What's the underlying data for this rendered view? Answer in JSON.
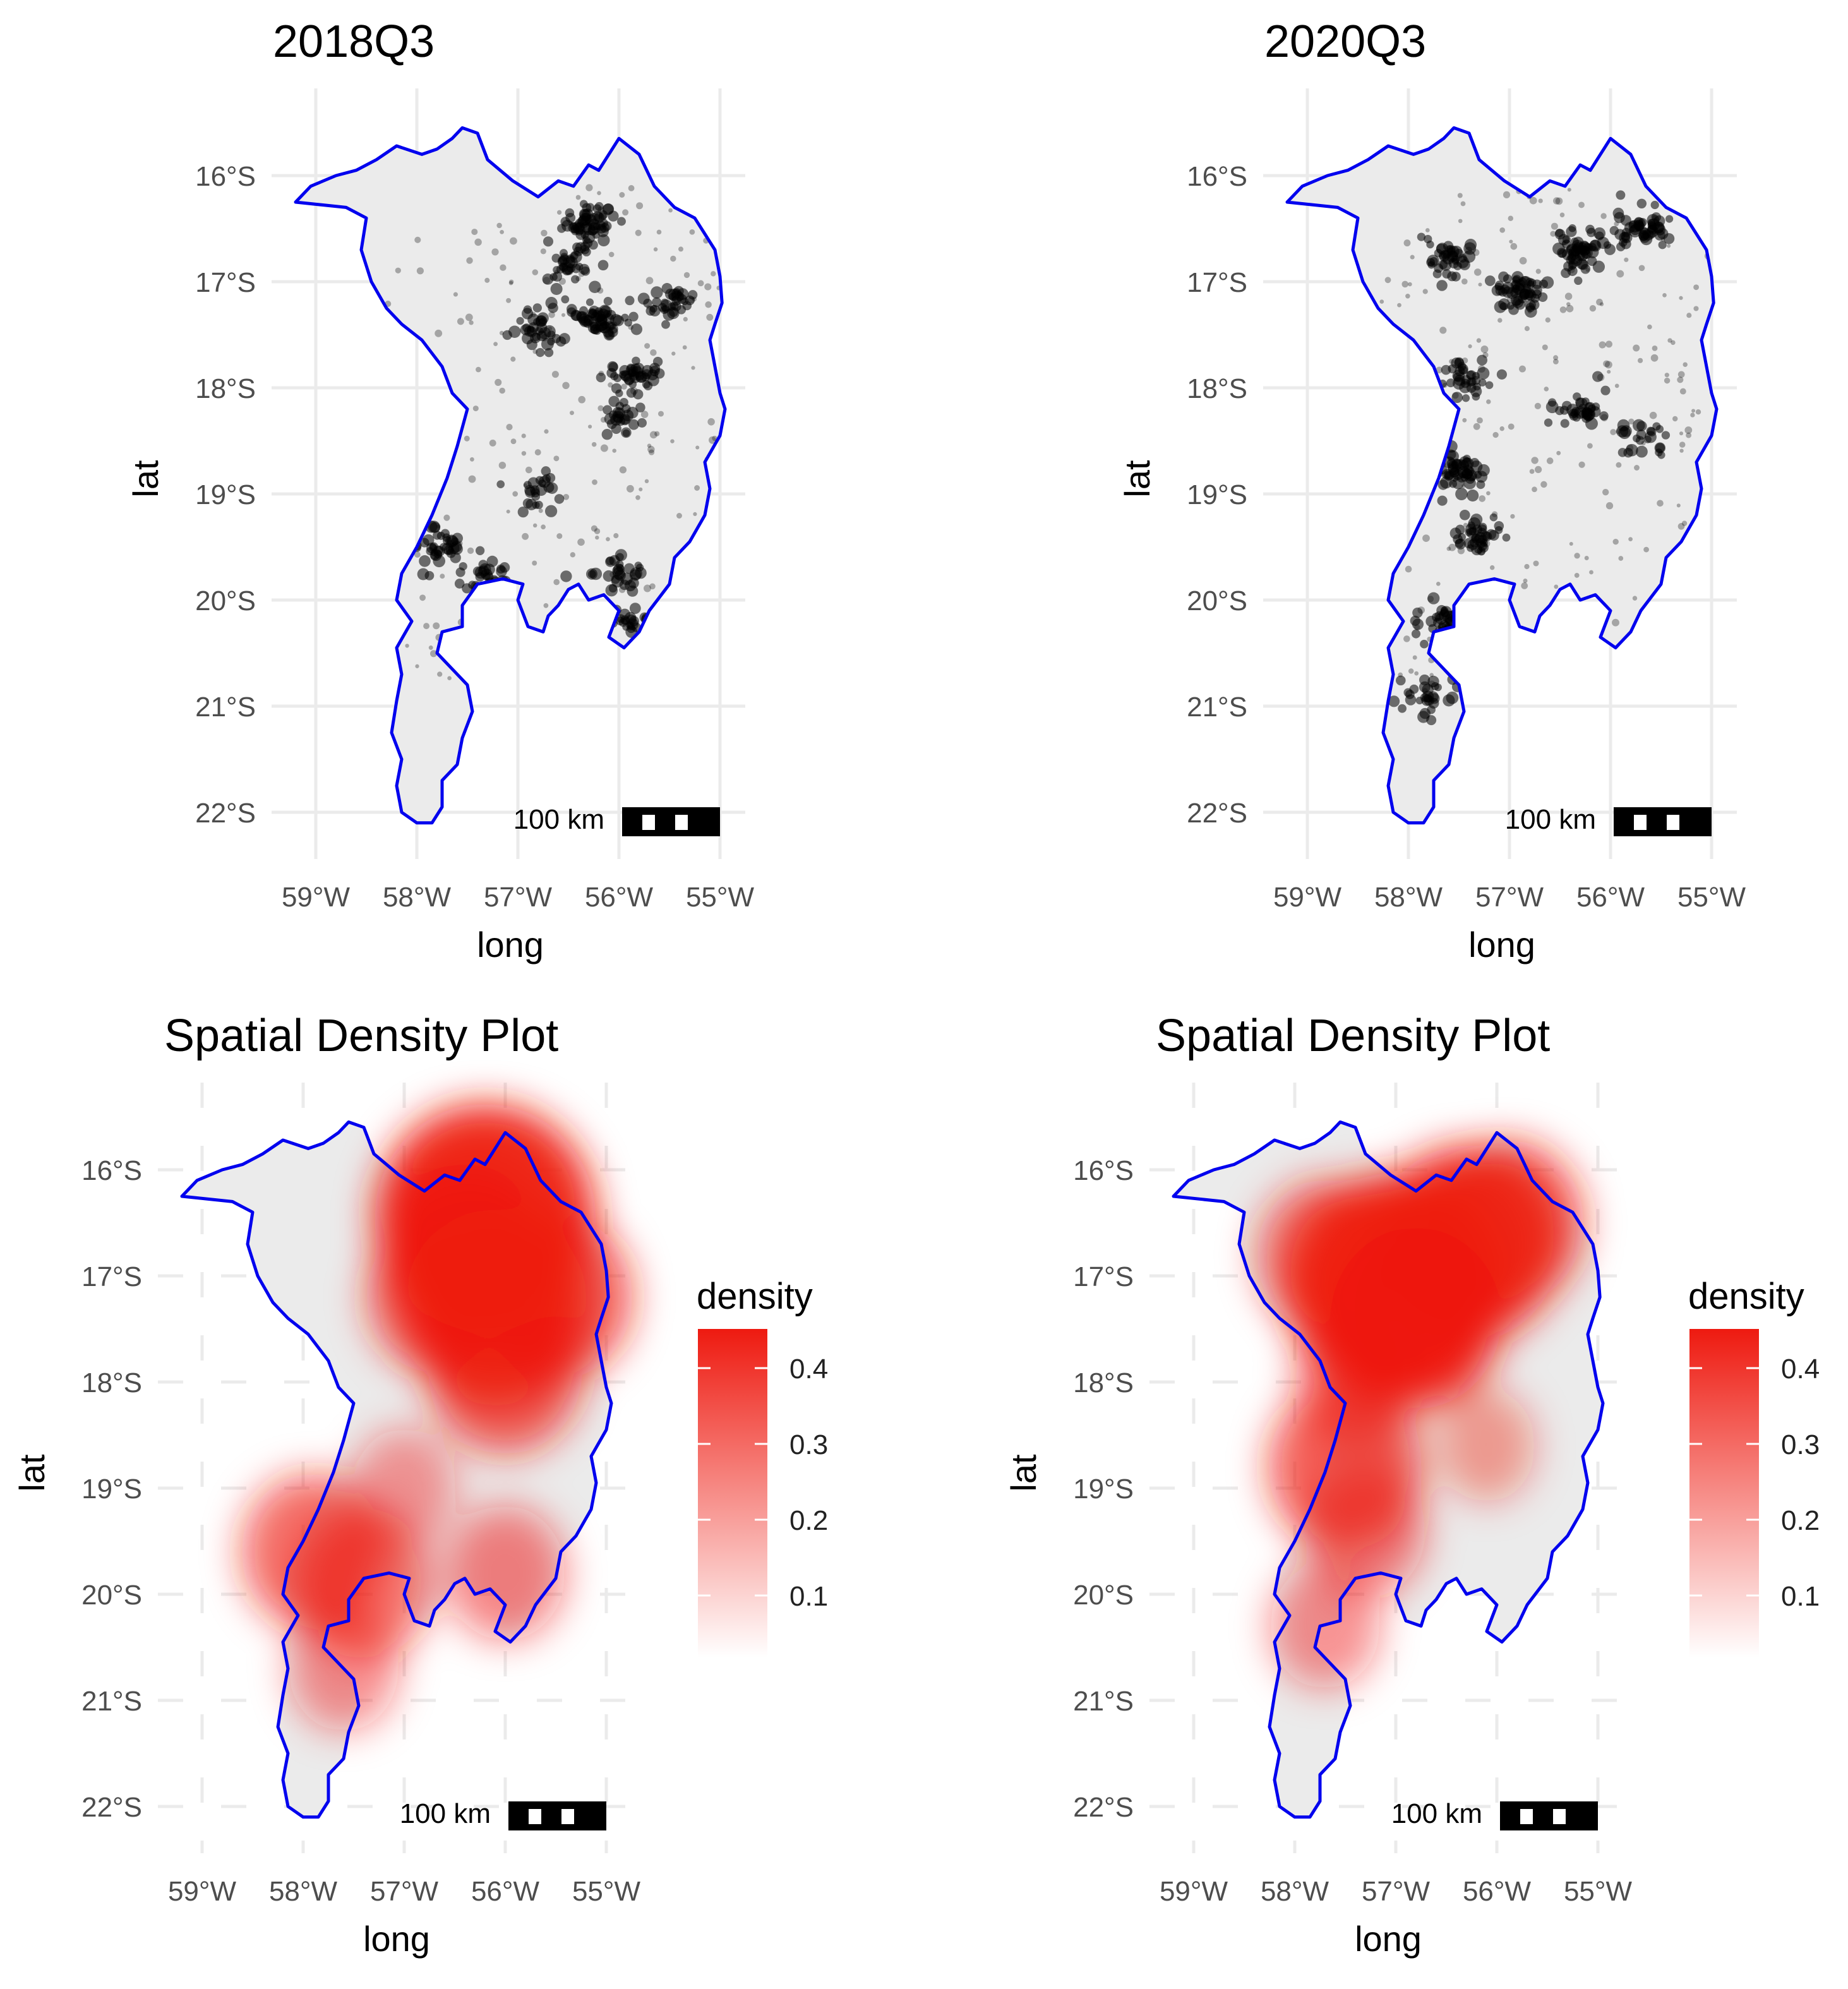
{
  "figure": {
    "panels": [
      {
        "id": "2018-points",
        "kind": "points",
        "title": "2018Q3",
        "xlabel": "long",
        "ylabel": "lat",
        "scalebar_label": "100 km"
      },
      {
        "id": "2020-points",
        "kind": "points",
        "title": "2020Q3",
        "xlabel": "long",
        "ylabel": "lat",
        "scalebar_label": "100 km"
      },
      {
        "id": "2018-density",
        "kind": "density",
        "title": "Spatial Density Plot",
        "xlabel": "long",
        "ylabel": "lat",
        "scalebar_label": "100 km",
        "legend_title": "density",
        "legend_ticks": [
          "0.4",
          "0.3",
          "0.2",
          "0.1"
        ]
      },
      {
        "id": "2020-density",
        "kind": "density",
        "title": "Spatial Density Plot",
        "xlabel": "long",
        "ylabel": "lat",
        "scalebar_label": "100 km",
        "legend_title": "density",
        "legend_ticks": [
          "0.4",
          "0.3",
          "0.2",
          "0.1"
        ]
      }
    ],
    "x_ticks": [
      "59°W",
      "58°W",
      "57°W",
      "56°W",
      "55°W"
    ],
    "y_ticks": [
      "16°S",
      "17°S",
      "18°S",
      "19°S",
      "20°S",
      "21°S",
      "22°S"
    ],
    "colors": {
      "boundary": "#0000ee",
      "fill": "#ebebeb",
      "grid": "#ebebeb",
      "points": "#000000",
      "density_high": "#ee1a10",
      "density_low": "#ffffff"
    }
  },
  "chart_data": [
    {
      "type": "scatter",
      "title": "2018Q3",
      "xlabel": "long",
      "ylabel": "lat",
      "xlim": [
        -59.2,
        -54.7
      ],
      "ylim": [
        -22.4,
        -15.5
      ],
      "clusters": [
        {
          "lon": -56.3,
          "lat": -16.45,
          "weight": 1.0
        },
        {
          "lon": -56.5,
          "lat": -16.85,
          "weight": 0.6
        },
        {
          "lon": -56.2,
          "lat": -17.35,
          "weight": 1.0
        },
        {
          "lon": -56.8,
          "lat": -17.45,
          "weight": 0.6
        },
        {
          "lon": -55.5,
          "lat": -17.2,
          "weight": 0.6
        },
        {
          "lon": -55.9,
          "lat": -17.9,
          "weight": 0.7
        },
        {
          "lon": -56.0,
          "lat": -18.3,
          "weight": 0.4
        },
        {
          "lon": -57.8,
          "lat": -19.5,
          "weight": 0.7
        },
        {
          "lon": -57.3,
          "lat": -19.8,
          "weight": 0.6
        },
        {
          "lon": -56.8,
          "lat": -19.0,
          "weight": 0.4
        },
        {
          "lon": -56.0,
          "lat": -19.7,
          "weight": 0.5
        },
        {
          "lon": -55.9,
          "lat": -20.2,
          "weight": 0.4
        },
        {
          "lon": -57.5,
          "lat": -20.5,
          "weight": 0.4
        }
      ]
    },
    {
      "type": "scatter",
      "title": "2020Q3",
      "xlabel": "long",
      "ylabel": "lat",
      "xlim": [
        -59.2,
        -54.7
      ],
      "ylim": [
        -22.4,
        -15.5
      ],
      "clusters": [
        {
          "lon": -56.9,
          "lat": -17.1,
          "weight": 1.0
        },
        {
          "lon": -56.3,
          "lat": -16.7,
          "weight": 1.0
        },
        {
          "lon": -55.7,
          "lat": -16.5,
          "weight": 0.9
        },
        {
          "lon": -57.6,
          "lat": -16.8,
          "weight": 0.7
        },
        {
          "lon": -57.4,
          "lat": -17.9,
          "weight": 0.6
        },
        {
          "lon": -57.5,
          "lat": -18.8,
          "weight": 0.9
        },
        {
          "lon": -57.3,
          "lat": -19.4,
          "weight": 0.7
        },
        {
          "lon": -57.6,
          "lat": -20.2,
          "weight": 0.7
        },
        {
          "lon": -57.8,
          "lat": -20.9,
          "weight": 0.5
        },
        {
          "lon": -56.3,
          "lat": -18.2,
          "weight": 0.6
        },
        {
          "lon": -55.7,
          "lat": -18.5,
          "weight": 0.4
        }
      ]
    },
    {
      "type": "heatmap",
      "title": "Spatial Density Plot",
      "xlabel": "long",
      "ylabel": "lat",
      "legend_title": "density",
      "colorbar_range": [
        0,
        0.45
      ],
      "xlim": [
        -59.2,
        -54.7
      ],
      "ylim": [
        -22.4,
        -15.5
      ],
      "hotspots": [
        {
          "lon": -56.2,
          "lat": -16.45,
          "density": 0.45
        },
        {
          "lon": -56.4,
          "lat": -16.8,
          "density": 0.3
        },
        {
          "lon": -56.1,
          "lat": -17.3,
          "density": 0.35
        },
        {
          "lon": -55.5,
          "lat": -17.2,
          "density": 0.25
        },
        {
          "lon": -56.7,
          "lat": -17.2,
          "density": 0.2
        },
        {
          "lon": -56.0,
          "lat": -17.9,
          "density": 0.25
        },
        {
          "lon": -57.9,
          "lat": -19.6,
          "density": 0.22
        },
        {
          "lon": -57.4,
          "lat": -19.9,
          "density": 0.2
        },
        {
          "lon": -57.0,
          "lat": -19.0,
          "density": 0.1
        },
        {
          "lon": -56.0,
          "lat": -19.8,
          "density": 0.15
        },
        {
          "lon": -57.6,
          "lat": -20.7,
          "density": 0.12
        }
      ]
    },
    {
      "type": "heatmap",
      "title": "Spatial Density Plot",
      "xlabel": "long",
      "ylabel": "lat",
      "legend_title": "density",
      "colorbar_range": [
        0,
        0.45
      ],
      "xlim": [
        -59.2,
        -54.7
      ],
      "ylim": [
        -22.4,
        -15.5
      ],
      "hotspots": [
        {
          "lon": -57.0,
          "lat": -17.1,
          "density": 0.45
        },
        {
          "lon": -56.3,
          "lat": -16.7,
          "density": 0.35
        },
        {
          "lon": -56.8,
          "lat": -17.4,
          "density": 0.3
        },
        {
          "lon": -55.9,
          "lat": -16.5,
          "density": 0.25
        },
        {
          "lon": -57.7,
          "lat": -16.8,
          "density": 0.2
        },
        {
          "lon": -57.4,
          "lat": -18.0,
          "density": 0.15
        },
        {
          "lon": -57.5,
          "lat": -18.8,
          "density": 0.25
        },
        {
          "lon": -57.3,
          "lat": -19.4,
          "density": 0.15
        },
        {
          "lon": -57.7,
          "lat": -20.3,
          "density": 0.12
        },
        {
          "lon": -56.1,
          "lat": -18.6,
          "density": 0.08
        }
      ]
    }
  ]
}
